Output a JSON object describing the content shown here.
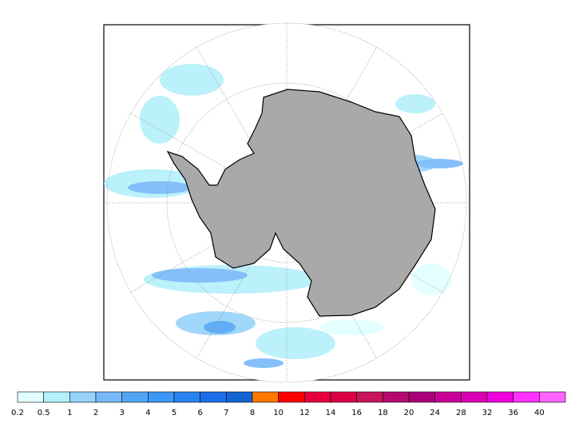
{
  "colorbar": {
    "labels": [
      0.2,
      0.5,
      1,
      2,
      3,
      4,
      5,
      6,
      7,
      8,
      10,
      12,
      14,
      16,
      18,
      20,
      24,
      28,
      32,
      36,
      40
    ],
    "colors": [
      "#e1ffff",
      "#b4f0fa",
      "#96d2fa",
      "#78b9fa",
      "#50a5f5",
      "#3c97f5",
      "#2883f0",
      "#1e6eeb",
      "#1464d2",
      "#ff7800",
      "#ff0000",
      "#e6003c",
      "#dc0046",
      "#c8145a",
      "#b40a6e",
      "#aa0078",
      "#c80096",
      "#dc00b4",
      "#f000dc",
      "#ff32ff",
      "#ff64ff"
    ]
  }
}
